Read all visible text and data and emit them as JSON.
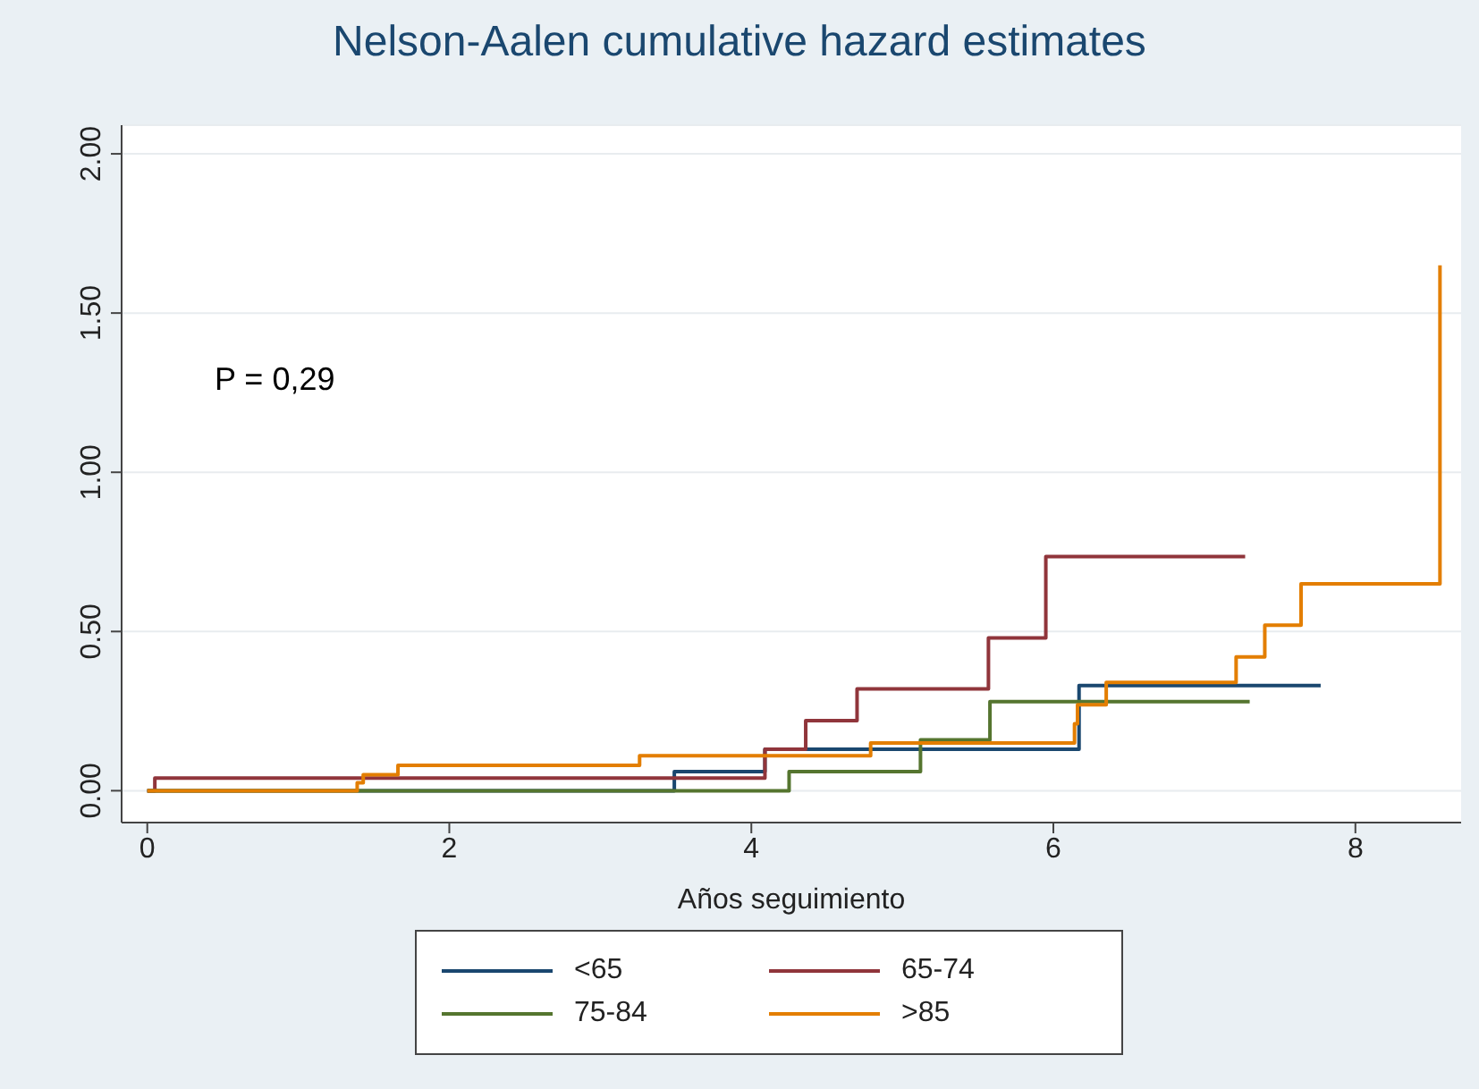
{
  "chart_data": {
    "type": "step",
    "title": "Nelson-Aalen cumulative hazard estimates",
    "xlabel": "Años seguimiento",
    "annotations": [
      "P = 0,29"
    ],
    "xlim": [
      -0.17,
      8.7
    ],
    "xticks": [
      0,
      2,
      4,
      6,
      8
    ],
    "ylim": [
      -0.1,
      2.09
    ],
    "yticks": [
      {
        "value": 0,
        "label": "0.00"
      },
      {
        "value": 0.5,
        "label": "0.50"
      },
      {
        "value": 1,
        "label": "1.00"
      },
      {
        "value": 1.5,
        "label": "1.50"
      },
      {
        "value": 2,
        "label": "2.00"
      }
    ],
    "grid": "y",
    "legend": "bottom",
    "series": [
      {
        "name": "<65",
        "color": "#1a476f",
        "x": [
          0,
          3.49,
          4.09,
          6.17,
          7.77
        ],
        "values": [
          0,
          0.06,
          0.13,
          0.33,
          0.33
        ]
      },
      {
        "name": "65-74",
        "color": "#90353b",
        "x": [
          0,
          0.05,
          4.09,
          4.36,
          4.7,
          5.57,
          5.95,
          7.27
        ],
        "values": [
          0,
          0.04,
          0.13,
          0.22,
          0.32,
          0.48,
          0.735,
          0.735
        ]
      },
      {
        "name": "75-84",
        "color": "#55752f",
        "x": [
          0,
          4.25,
          5.12,
          5.58,
          7.3
        ],
        "values": [
          0,
          0.06,
          0.16,
          0.28,
          0.28
        ]
      },
      {
        "name": ">85",
        "color": "#e37e00",
        "x": [
          0,
          1.39,
          1.43,
          1.66,
          3.26,
          4.79,
          6.14,
          6.16,
          6.35,
          7.21,
          7.4,
          7.64,
          8.56
        ],
        "values": [
          0,
          0.025,
          0.05,
          0.08,
          0.11,
          0.15,
          0.21,
          0.27,
          0.34,
          0.42,
          0.52,
          0.65,
          1.65
        ]
      }
    ]
  }
}
